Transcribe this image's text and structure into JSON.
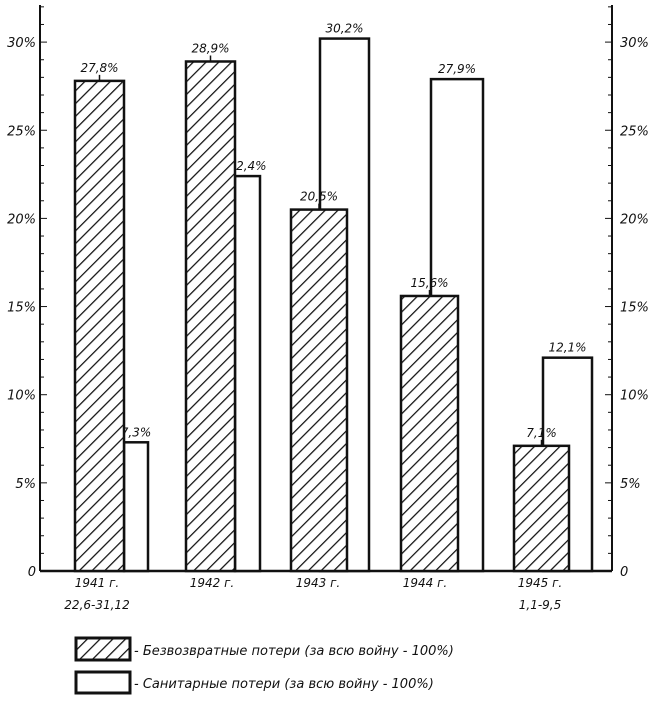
{
  "chart_data": {
    "type": "bar",
    "categories": [
      [
        "1941 г.",
        "22,6-31,12"
      ],
      [
        "1942 г."
      ],
      [
        "1943 г."
      ],
      [
        "1944 г."
      ],
      [
        "1945 г.",
        "1,1-9,5"
      ]
    ],
    "series": [
      {
        "name": "- Безвозвратные потери (за всю войну - 100%)",
        "pattern": "hatched",
        "values": [
          27.8,
          28.9,
          20.5,
          15.6,
          7.1
        ],
        "labels": [
          "27,8%",
          "28,9%",
          "20,5%",
          "15,6%",
          "7,1%"
        ]
      },
      {
        "name": "- Санитарные потери (за всю войну - 100%)",
        "pattern": "white",
        "values": [
          7.3,
          22.4,
          30.2,
          27.9,
          12.1
        ],
        "labels": [
          "7,3%",
          "22,4%",
          "30,2%",
          "27,9%",
          "12,1%"
        ]
      }
    ],
    "yticks": [
      0,
      5,
      10,
      15,
      20,
      25,
      30
    ],
    "ytick_labels_left": [
      "0",
      "5%",
      "10%",
      "15%",
      "20%",
      "25%",
      "30%"
    ],
    "ytick_labels_right": [
      "0",
      "5%",
      "10%",
      "15%",
      "20%",
      "25%",
      "30%"
    ],
    "ylim": [
      0,
      31
    ],
    "legend_position": "bottom",
    "grid": false,
    "colors": {
      "ink": "#111111",
      "background": "#ffffff"
    }
  }
}
